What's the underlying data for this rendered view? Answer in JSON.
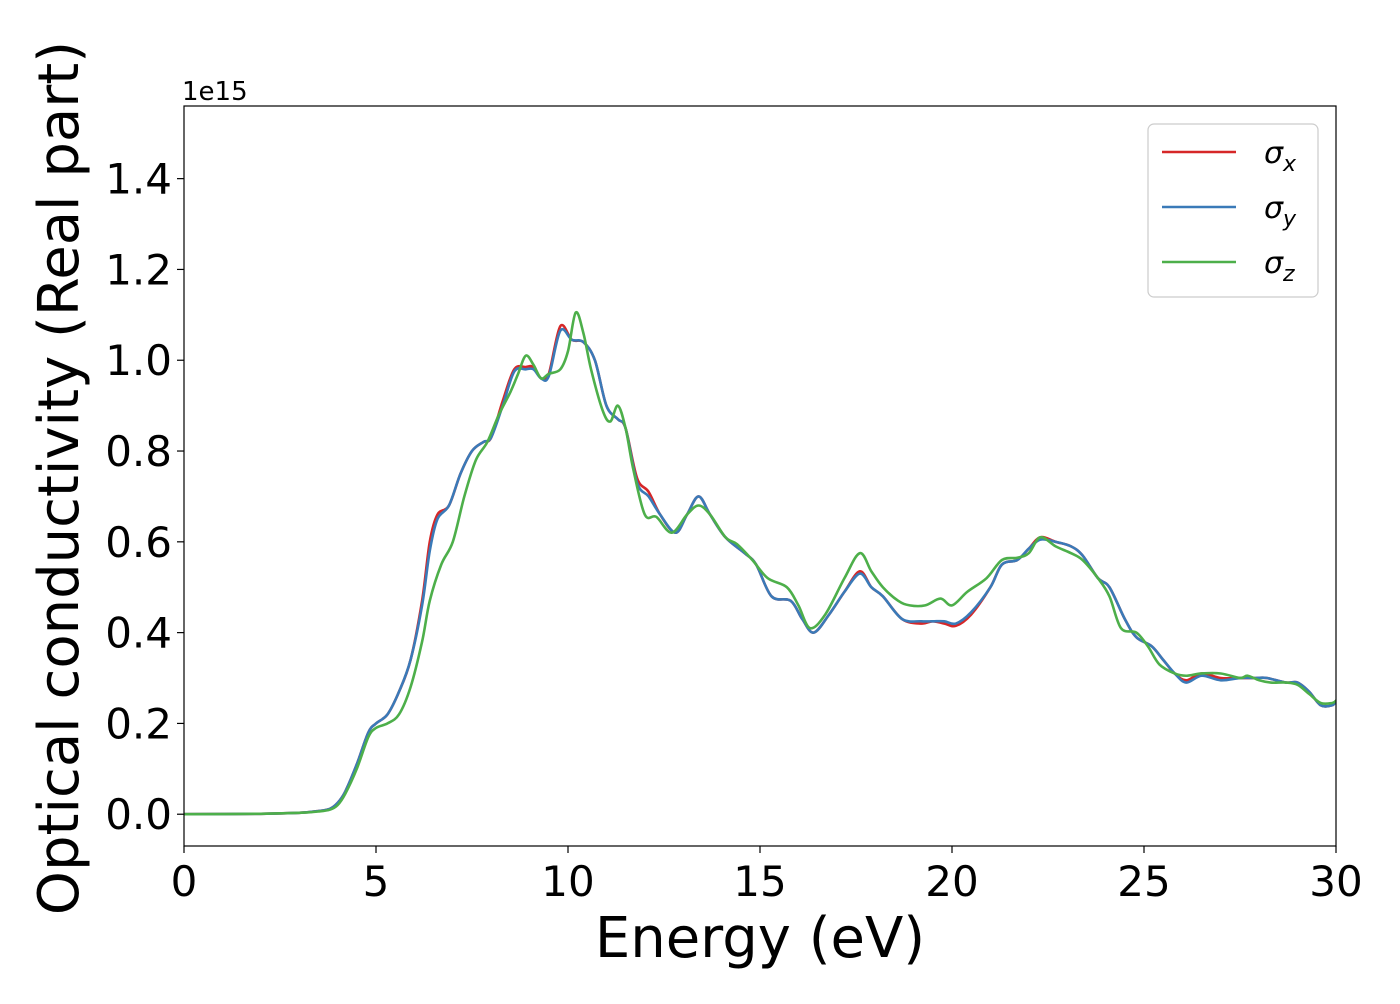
{
  "chart_data": {
    "type": "line",
    "title": "",
    "xlabel": "Energy (eV)",
    "ylabel": "Optical conductivity (Real part)",
    "y_offset_label": "1e15",
    "xlim": [
      0,
      30
    ],
    "ylim": [
      -0.07,
      1.56
    ],
    "xticks": [
      0,
      5,
      10,
      15,
      20,
      25,
      30
    ],
    "xtick_labels": [
      "0",
      "5",
      "10",
      "15",
      "20",
      "25",
      "30"
    ],
    "yticks": [
      0.0,
      0.2,
      0.4,
      0.6,
      0.8,
      1.0,
      1.2,
      1.4
    ],
    "ytick_labels": [
      "0.0",
      "0.2",
      "0.4",
      "0.6",
      "0.8",
      "1.0",
      "1.2",
      "1.4"
    ],
    "grid": false,
    "legend_position": "top-right",
    "series": [
      {
        "name": "σx",
        "color": "#d62728",
        "points": [
          [
            0,
            0
          ],
          [
            2,
            0.001
          ],
          [
            3,
            0.003
          ],
          [
            3.5,
            0.007
          ],
          [
            3.8,
            0.012
          ],
          [
            4.0,
            0.025
          ],
          [
            4.2,
            0.05
          ],
          [
            4.5,
            0.11
          ],
          [
            4.8,
            0.18
          ],
          [
            5.0,
            0.2
          ],
          [
            5.3,
            0.22
          ],
          [
            5.6,
            0.27
          ],
          [
            5.9,
            0.34
          ],
          [
            6.2,
            0.47
          ],
          [
            6.4,
            0.6
          ],
          [
            6.6,
            0.66
          ],
          [
            6.9,
            0.68
          ],
          [
            7.2,
            0.75
          ],
          [
            7.5,
            0.8
          ],
          [
            7.8,
            0.82
          ],
          [
            8.0,
            0.83
          ],
          [
            8.3,
            0.91
          ],
          [
            8.6,
            0.98
          ],
          [
            8.9,
            0.985
          ],
          [
            9.1,
            0.985
          ],
          [
            9.3,
            0.96
          ],
          [
            9.5,
            0.97
          ],
          [
            9.8,
            1.075
          ],
          [
            10.1,
            1.045
          ],
          [
            10.4,
            1.04
          ],
          [
            10.7,
            1.0
          ],
          [
            11.0,
            0.9
          ],
          [
            11.3,
            0.87
          ],
          [
            11.5,
            0.85
          ],
          [
            11.8,
            0.74
          ],
          [
            12.1,
            0.71
          ],
          [
            12.4,
            0.66
          ],
          [
            12.8,
            0.62
          ],
          [
            13.1,
            0.66
          ],
          [
            13.4,
            0.7
          ],
          [
            13.7,
            0.66
          ],
          [
            14.1,
            0.61
          ],
          [
            14.6,
            0.575
          ],
          [
            14.9,
            0.55
          ],
          [
            15.3,
            0.48
          ],
          [
            15.8,
            0.47
          ],
          [
            16.1,
            0.43
          ],
          [
            16.4,
            0.4
          ],
          [
            16.8,
            0.44
          ],
          [
            17.2,
            0.49
          ],
          [
            17.6,
            0.535
          ],
          [
            17.9,
            0.5
          ],
          [
            18.2,
            0.48
          ],
          [
            18.7,
            0.43
          ],
          [
            19.2,
            0.42
          ],
          [
            19.5,
            0.425
          ],
          [
            19.8,
            0.42
          ],
          [
            20.1,
            0.415
          ],
          [
            20.5,
            0.44
          ],
          [
            21.0,
            0.5
          ],
          [
            21.3,
            0.55
          ],
          [
            21.7,
            0.56
          ],
          [
            22.0,
            0.585
          ],
          [
            22.3,
            0.61
          ],
          [
            22.7,
            0.6
          ],
          [
            23.1,
            0.59
          ],
          [
            23.4,
            0.57
          ],
          [
            23.8,
            0.52
          ],
          [
            24.1,
            0.5
          ],
          [
            24.5,
            0.43
          ],
          [
            24.8,
            0.39
          ],
          [
            25.2,
            0.37
          ],
          [
            25.5,
            0.34
          ],
          [
            25.8,
            0.31
          ],
          [
            26.1,
            0.295
          ],
          [
            26.5,
            0.31
          ],
          [
            27.0,
            0.3
          ],
          [
            27.5,
            0.3
          ],
          [
            27.9,
            0.3
          ],
          [
            28.2,
            0.3
          ],
          [
            28.7,
            0.29
          ],
          [
            29.0,
            0.29
          ],
          [
            29.3,
            0.27
          ],
          [
            29.6,
            0.24
          ],
          [
            29.9,
            0.24
          ],
          [
            30,
            0.25
          ]
        ]
      },
      {
        "name": "σy",
        "color": "#3a7ab8",
        "points": [
          [
            0,
            0
          ],
          [
            2,
            0.001
          ],
          [
            3,
            0.003
          ],
          [
            3.5,
            0.007
          ],
          [
            3.8,
            0.012
          ],
          [
            4.0,
            0.025
          ],
          [
            4.2,
            0.05
          ],
          [
            4.5,
            0.11
          ],
          [
            4.8,
            0.18
          ],
          [
            5.0,
            0.2
          ],
          [
            5.3,
            0.22
          ],
          [
            5.6,
            0.27
          ],
          [
            5.9,
            0.34
          ],
          [
            6.2,
            0.46
          ],
          [
            6.4,
            0.58
          ],
          [
            6.6,
            0.65
          ],
          [
            6.9,
            0.68
          ],
          [
            7.2,
            0.75
          ],
          [
            7.5,
            0.8
          ],
          [
            7.8,
            0.82
          ],
          [
            8.0,
            0.83
          ],
          [
            8.3,
            0.9
          ],
          [
            8.6,
            0.975
          ],
          [
            8.9,
            0.98
          ],
          [
            9.1,
            0.98
          ],
          [
            9.3,
            0.96
          ],
          [
            9.5,
            0.965
          ],
          [
            9.8,
            1.065
          ],
          [
            10.1,
            1.045
          ],
          [
            10.4,
            1.04
          ],
          [
            10.7,
            1.0
          ],
          [
            11.0,
            0.9
          ],
          [
            11.3,
            0.87
          ],
          [
            11.5,
            0.85
          ],
          [
            11.8,
            0.73
          ],
          [
            12.1,
            0.7
          ],
          [
            12.4,
            0.66
          ],
          [
            12.8,
            0.62
          ],
          [
            13.1,
            0.66
          ],
          [
            13.4,
            0.7
          ],
          [
            13.7,
            0.66
          ],
          [
            14.1,
            0.61
          ],
          [
            14.6,
            0.575
          ],
          [
            14.9,
            0.55
          ],
          [
            15.3,
            0.48
          ],
          [
            15.8,
            0.47
          ],
          [
            16.1,
            0.43
          ],
          [
            16.4,
            0.4
          ],
          [
            16.8,
            0.44
          ],
          [
            17.2,
            0.49
          ],
          [
            17.6,
            0.53
          ],
          [
            17.9,
            0.5
          ],
          [
            18.2,
            0.48
          ],
          [
            18.7,
            0.43
          ],
          [
            19.2,
            0.425
          ],
          [
            19.5,
            0.425
          ],
          [
            19.8,
            0.425
          ],
          [
            20.1,
            0.42
          ],
          [
            20.5,
            0.445
          ],
          [
            21.0,
            0.5
          ],
          [
            21.3,
            0.55
          ],
          [
            21.7,
            0.56
          ],
          [
            22.0,
            0.585
          ],
          [
            22.3,
            0.605
          ],
          [
            22.7,
            0.6
          ],
          [
            23.1,
            0.59
          ],
          [
            23.4,
            0.57
          ],
          [
            23.8,
            0.52
          ],
          [
            24.1,
            0.5
          ],
          [
            24.5,
            0.43
          ],
          [
            24.8,
            0.39
          ],
          [
            25.2,
            0.37
          ],
          [
            25.5,
            0.34
          ],
          [
            25.8,
            0.31
          ],
          [
            26.1,
            0.29
          ],
          [
            26.5,
            0.305
          ],
          [
            27.0,
            0.295
          ],
          [
            27.5,
            0.3
          ],
          [
            27.9,
            0.3
          ],
          [
            28.2,
            0.3
          ],
          [
            28.7,
            0.29
          ],
          [
            29.0,
            0.29
          ],
          [
            29.3,
            0.27
          ],
          [
            29.6,
            0.24
          ],
          [
            29.9,
            0.24
          ],
          [
            30,
            0.25
          ]
        ]
      },
      {
        "name": "σz",
        "color": "#4daf4a",
        "points": [
          [
            0,
            0
          ],
          [
            2,
            0.001
          ],
          [
            3,
            0.003
          ],
          [
            3.5,
            0.006
          ],
          [
            3.8,
            0.01
          ],
          [
            4.0,
            0.02
          ],
          [
            4.2,
            0.045
          ],
          [
            4.5,
            0.1
          ],
          [
            4.8,
            0.17
          ],
          [
            5.0,
            0.19
          ],
          [
            5.3,
            0.2
          ],
          [
            5.6,
            0.22
          ],
          [
            5.9,
            0.28
          ],
          [
            6.2,
            0.38
          ],
          [
            6.4,
            0.47
          ],
          [
            6.7,
            0.55
          ],
          [
            7.0,
            0.6
          ],
          [
            7.3,
            0.7
          ],
          [
            7.6,
            0.78
          ],
          [
            7.9,
            0.82
          ],
          [
            8.2,
            0.88
          ],
          [
            8.5,
            0.93
          ],
          [
            8.7,
            0.97
          ],
          [
            8.9,
            1.01
          ],
          [
            9.1,
            0.99
          ],
          [
            9.3,
            0.96
          ],
          [
            9.5,
            0.97
          ],
          [
            9.8,
            0.98
          ],
          [
            10.0,
            1.02
          ],
          [
            10.2,
            1.105
          ],
          [
            10.4,
            1.06
          ],
          [
            10.6,
            0.98
          ],
          [
            10.9,
            0.89
          ],
          [
            11.1,
            0.865
          ],
          [
            11.3,
            0.9
          ],
          [
            11.5,
            0.85
          ],
          [
            11.7,
            0.76
          ],
          [
            12.0,
            0.66
          ],
          [
            12.3,
            0.655
          ],
          [
            12.7,
            0.62
          ],
          [
            13.1,
            0.66
          ],
          [
            13.4,
            0.68
          ],
          [
            13.7,
            0.66
          ],
          [
            14.1,
            0.61
          ],
          [
            14.4,
            0.595
          ],
          [
            14.8,
            0.56
          ],
          [
            15.2,
            0.52
          ],
          [
            15.7,
            0.5
          ],
          [
            16.0,
            0.46
          ],
          [
            16.3,
            0.41
          ],
          [
            16.7,
            0.44
          ],
          [
            17.2,
            0.52
          ],
          [
            17.6,
            0.575
          ],
          [
            17.9,
            0.535
          ],
          [
            18.2,
            0.5
          ],
          [
            18.6,
            0.47
          ],
          [
            18.9,
            0.46
          ],
          [
            19.3,
            0.46
          ],
          [
            19.7,
            0.475
          ],
          [
            20.0,
            0.46
          ],
          [
            20.4,
            0.49
          ],
          [
            20.9,
            0.52
          ],
          [
            21.3,
            0.56
          ],
          [
            21.7,
            0.565
          ],
          [
            22.0,
            0.575
          ],
          [
            22.3,
            0.61
          ],
          [
            22.7,
            0.59
          ],
          [
            23.1,
            0.575
          ],
          [
            23.4,
            0.56
          ],
          [
            23.8,
            0.52
          ],
          [
            24.1,
            0.48
          ],
          [
            24.4,
            0.41
          ],
          [
            24.8,
            0.4
          ],
          [
            25.1,
            0.37
          ],
          [
            25.4,
            0.33
          ],
          [
            25.8,
            0.31
          ],
          [
            26.1,
            0.305
          ],
          [
            26.5,
            0.31
          ],
          [
            27.0,
            0.31
          ],
          [
            27.5,
            0.3
          ],
          [
            27.7,
            0.305
          ],
          [
            28.0,
            0.295
          ],
          [
            28.3,
            0.29
          ],
          [
            28.7,
            0.29
          ],
          [
            29.0,
            0.285
          ],
          [
            29.3,
            0.265
          ],
          [
            29.6,
            0.245
          ],
          [
            29.9,
            0.245
          ],
          [
            30,
            0.25
          ]
        ]
      }
    ]
  }
}
